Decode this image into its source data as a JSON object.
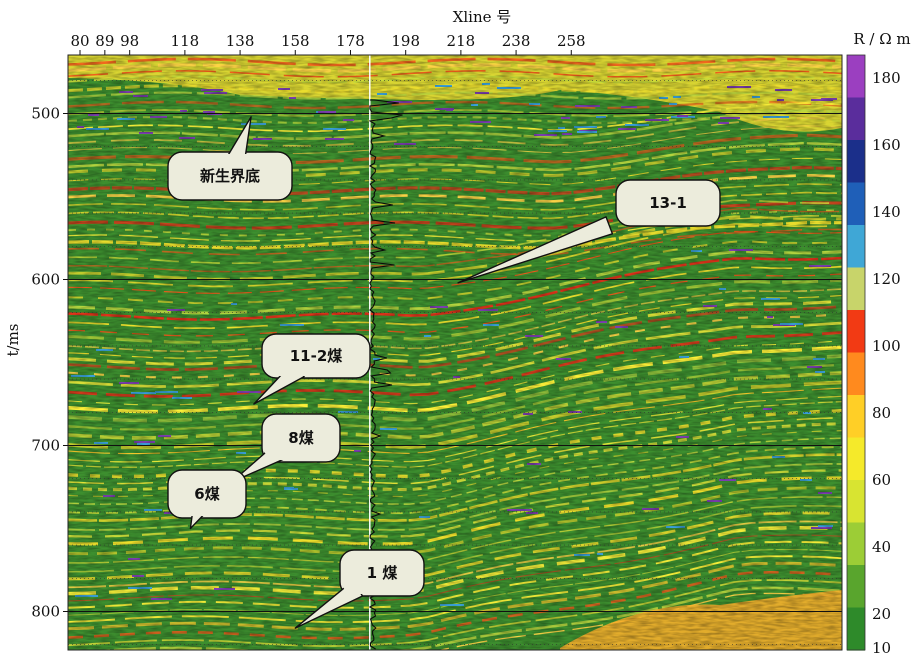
{
  "chart_data": {
    "type": "heatmap",
    "title": "",
    "xlabel": "Xline 号",
    "ylabel": "t/ms",
    "x_ticks": [
      80,
      89,
      98,
      118,
      138,
      158,
      178,
      198,
      218,
      238,
      258
    ],
    "xlim": [
      80,
      260
    ],
    "y_ticks": [
      500,
      600,
      700,
      800
    ],
    "ylim": [
      469,
      822
    ],
    "colorbar": {
      "label": "R / Ω m",
      "ticks": [
        10,
        20,
        40,
        60,
        80,
        100,
        120,
        140,
        160,
        180
      ],
      "colors": [
        "#2e8a2a",
        "#59a52d",
        "#9ccd36",
        "#d8e431",
        "#f5ea2a",
        "#ffcf26",
        "#ff8a1e",
        "#f23a14",
        "#c8d46a",
        "#3fa7d6",
        "#1f5fb8",
        "#1b2f8a",
        "#5a2d9c",
        "#9b3fc0"
      ]
    },
    "well_log": {
      "xline": 185
    },
    "annotations": [
      {
        "text": "新生界底",
        "pointer": {
          "xline": 142,
          "t": 502
        }
      },
      {
        "text": "13-1",
        "pointer": {
          "xline": 217,
          "t": 602
        }
      },
      {
        "text": "11-2煤",
        "pointer": {
          "xline": 143,
          "t": 675
        }
      },
      {
        "text": "8煤",
        "pointer": {
          "xline": 135,
          "t": 722
        }
      },
      {
        "text": "6煤",
        "pointer": {
          "xline": 120,
          "t": 750
        }
      },
      {
        "text": "1 煤",
        "pointer": {
          "xline": 158,
          "t": 810
        }
      }
    ]
  }
}
